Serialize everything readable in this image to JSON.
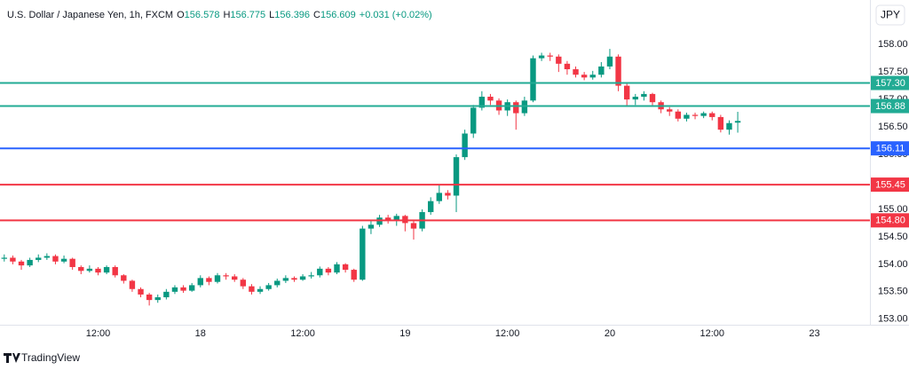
{
  "header": {
    "symbol": "U.S. Dollar / Japanese Yen, 1h, FXCM",
    "ohlc": [
      {
        "key": "O",
        "value": "156.578"
      },
      {
        "key": "H",
        "value": "156.775"
      },
      {
        "key": "L",
        "value": "156.396"
      },
      {
        "key": "C",
        "value": "156.609"
      }
    ],
    "change": "+0.031 (+0.02%)",
    "currency": "JPY",
    "brand": "TradingView"
  },
  "chart_data": {
    "type": "candlestick",
    "up_color": "#089981",
    "down_color": "#f23645",
    "grid": false,
    "ylim": [
      152.9,
      158.81
    ],
    "yticks": [
      {
        "value": 153,
        "label": "153.00"
      },
      {
        "value": 153.5,
        "label": "153.50"
      },
      {
        "value": 154,
        "label": "154.00"
      },
      {
        "value": 154.5,
        "label": "154.50"
      },
      {
        "value": 155,
        "label": "155.00"
      },
      {
        "value": 155.5,
        "label": "155.50"
      },
      {
        "value": 156,
        "label": "156.00"
      },
      {
        "value": 156.5,
        "label": "156.50"
      },
      {
        "value": 157,
        "label": "157.00"
      },
      {
        "value": 157.5,
        "label": "157.50"
      },
      {
        "value": 158,
        "label": "158.00"
      }
    ],
    "levels": [
      {
        "value": 157.3,
        "label": "157.30",
        "color": "#22ab94"
      },
      {
        "value": 156.88,
        "label": "156.88",
        "color": "#22ab94"
      },
      {
        "value": 156.11,
        "label": "156.11",
        "color": "#2962ff"
      },
      {
        "value": 155.45,
        "label": "155.45",
        "color": "#f23645"
      },
      {
        "value": 154.8,
        "label": "154.80",
        "color": "#f23645"
      }
    ],
    "categories": [
      null,
      null,
      null,
      null,
      null,
      null,
      null,
      null,
      null,
      null,
      null,
      "12:00",
      null,
      null,
      null,
      null,
      null,
      null,
      null,
      null,
      null,
      null,
      null,
      "18",
      null,
      null,
      null,
      null,
      null,
      null,
      null,
      null,
      null,
      null,
      null,
      "12:00",
      null,
      null,
      null,
      null,
      null,
      null,
      null,
      null,
      null,
      null,
      null,
      "19",
      null,
      null,
      null,
      null,
      null,
      null,
      null,
      null,
      null,
      null,
      null,
      "12:00",
      null,
      null,
      null,
      null,
      null,
      null,
      null,
      null,
      null,
      null,
      null,
      "20",
      null,
      null,
      null,
      null,
      null,
      null,
      null,
      null,
      null,
      null,
      null,
      "12:00",
      null,
      null,
      null,
      null,
      null,
      null,
      null,
      null,
      null,
      null,
      null,
      "23",
      null,
      null,
      null,
      null,
      null,
      null
    ],
    "open": [
      154.1,
      154.12,
      154.05,
      153.98,
      154.08,
      154.12,
      154.15,
      154.05,
      154.1,
      153.95,
      153.88,
      153.92,
      153.85,
      153.95,
      153.8,
      153.7,
      153.55,
      153.45,
      153.35,
      153.4,
      153.5,
      153.58,
      153.52,
      153.62,
      153.75,
      153.68,
      153.8,
      153.78,
      153.72,
      153.6,
      153.5,
      153.55,
      153.62,
      153.7,
      153.75,
      153.72,
      153.78,
      153.8,
      153.92,
      153.85,
      154.0,
      153.9,
      153.72,
      154.65,
      154.72,
      154.85,
      154.8,
      154.88,
      154.75,
      154.65,
      154.95,
      155.15,
      155.3,
      155.25,
      155.95,
      156.38,
      156.85,
      157.05,
      156.98,
      156.8,
      156.95,
      156.75,
      156.98,
      157.75,
      157.8,
      157.78,
      157.65,
      157.55,
      157.45,
      157.4,
      157.45,
      157.6,
      157.78,
      157.25,
      157.0,
      157.05,
      157.1,
      156.95,
      156.82,
      156.78,
      156.65,
      156.72,
      156.7,
      156.75,
      156.68,
      156.45,
      156.578,
      null,
      null,
      null,
      null,
      null,
      null,
      null,
      null,
      null,
      null,
      null,
      null,
      null,
      null,
      null
    ],
    "high": [
      154.18,
      154.16,
      154.08,
      154.12,
      154.18,
      154.2,
      154.18,
      154.16,
      154.12,
      153.98,
      153.98,
      153.95,
      153.98,
      153.98,
      153.82,
      153.72,
      153.58,
      153.48,
      153.45,
      153.55,
      153.62,
      153.62,
      153.66,
      153.8,
      153.78,
      153.84,
      153.84,
      153.82,
      153.75,
      153.64,
      153.6,
      153.66,
      153.74,
      153.8,
      153.78,
      153.82,
      153.86,
      153.96,
      153.95,
      154.04,
      154.02,
      153.92,
      154.7,
      154.8,
      154.9,
      154.9,
      154.92,
      154.9,
      154.8,
      155.0,
      155.22,
      155.45,
      155.35,
      156.0,
      156.45,
      156.9,
      157.15,
      157.1,
      157.02,
      157.0,
      156.98,
      157.05,
      157.8,
      157.85,
      157.85,
      157.82,
      157.7,
      157.6,
      157.5,
      157.52,
      157.68,
      157.92,
      157.82,
      157.3,
      157.1,
      157.15,
      157.12,
      156.98,
      156.86,
      156.82,
      156.76,
      156.76,
      156.78,
      156.78,
      156.72,
      156.62,
      156.775,
      null,
      null,
      null,
      null,
      null,
      null,
      null,
      null,
      null,
      null,
      null,
      null,
      null,
      null,
      null
    ],
    "low": [
      154.05,
      154.0,
      153.9,
      153.95,
      154.04,
      154.08,
      154.0,
      154.02,
      153.9,
      153.82,
      153.85,
      153.8,
      153.82,
      153.76,
      153.65,
      153.5,
      153.4,
      153.25,
      153.3,
      153.36,
      153.46,
      153.48,
      153.5,
      153.58,
      153.62,
      153.65,
      153.72,
      153.68,
      153.55,
      153.45,
      153.46,
      153.52,
      153.58,
      153.66,
      153.68,
      153.7,
      153.74,
      153.76,
      153.8,
      153.82,
      153.85,
      153.68,
      153.7,
      154.55,
      154.68,
      154.74,
      154.7,
      154.6,
      154.45,
      154.6,
      154.9,
      155.1,
      155.18,
      154.95,
      155.9,
      156.3,
      156.8,
      156.9,
      156.72,
      156.7,
      156.45,
      156.7,
      156.95,
      157.7,
      157.7,
      157.5,
      157.45,
      157.4,
      157.35,
      157.36,
      157.4,
      157.55,
      157.15,
      156.88,
      156.9,
      156.98,
      156.88,
      156.75,
      156.7,
      156.6,
      156.6,
      156.64,
      156.66,
      156.62,
      156.4,
      156.36,
      156.396,
      null,
      null,
      null,
      null,
      null,
      null,
      null,
      null,
      null,
      null,
      null,
      null,
      null,
      null,
      null
    ],
    "close": [
      154.12,
      154.05,
      153.98,
      154.08,
      154.12,
      154.15,
      154.05,
      154.1,
      153.95,
      153.88,
      153.92,
      153.85,
      153.95,
      153.8,
      153.7,
      153.55,
      153.45,
      153.35,
      153.4,
      153.5,
      153.58,
      153.52,
      153.62,
      153.75,
      153.68,
      153.8,
      153.78,
      153.72,
      153.6,
      153.5,
      153.55,
      153.62,
      153.7,
      153.75,
      153.72,
      153.78,
      153.8,
      153.92,
      153.85,
      154.0,
      153.9,
      153.72,
      154.65,
      154.72,
      154.85,
      154.8,
      154.88,
      154.75,
      154.65,
      154.95,
      155.15,
      155.3,
      155.25,
      155.95,
      156.38,
      156.85,
      157.05,
      156.98,
      156.8,
      156.95,
      156.75,
      156.98,
      157.75,
      157.8,
      157.78,
      157.65,
      157.55,
      157.45,
      157.4,
      157.45,
      157.6,
      157.78,
      157.25,
      157.0,
      157.05,
      157.1,
      156.95,
      156.82,
      156.78,
      156.65,
      156.72,
      156.7,
      156.75,
      156.68,
      156.45,
      156.57,
      156.609,
      null,
      null,
      null,
      null,
      null,
      null,
      null,
      null,
      null,
      null,
      null,
      null,
      null,
      null,
      null
    ]
  }
}
